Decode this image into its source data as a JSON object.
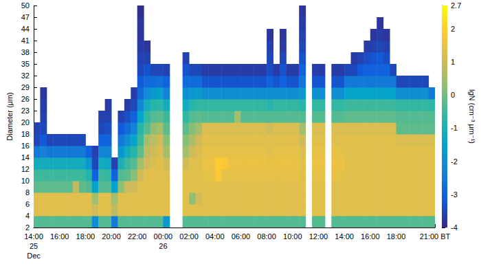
{
  "chart_data": {
    "type": "heatmap",
    "ylabel": "Diameter (μm)",
    "x": [
      "14:00\n25\nDec",
      null,
      null,
      null,
      "16:00",
      null,
      null,
      null,
      "18:00",
      null,
      null,
      null,
      "20:00",
      null,
      null,
      null,
      "22:00",
      null,
      null,
      null,
      "00:00\n26",
      null,
      null,
      null,
      "02:00",
      null,
      null,
      null,
      "04:00",
      null,
      null,
      null,
      "06:00",
      null,
      null,
      null,
      "08:00",
      null,
      null,
      null,
      "10:00",
      null,
      null,
      null,
      "12:00",
      null,
      null,
      null,
      "14:00",
      null,
      null,
      null,
      "16:00",
      null,
      null,
      null,
      "18:00",
      null,
      null,
      null,
      null,
      null,
      "21:00 BT"
    ],
    "y": [
      2,
      4,
      6,
      8,
      10,
      12,
      14,
      16,
      18,
      20,
      23,
      26,
      29,
      32,
      35,
      38,
      41,
      44,
      47,
      50
    ],
    "z": [
      [
        -0.3,
        1.3,
        1.3,
        -0.2,
        -0.5,
        -1.2,
        -2.5,
        -3.5,
        -3.6,
        null,
        null,
        null,
        null,
        null,
        null,
        null,
        null,
        null,
        null
      ],
      [
        -0.3,
        1.3,
        1.3,
        -0.2,
        -0.5,
        -1.2,
        -2.3,
        -3.2,
        -3.5,
        -3.6,
        -3.7,
        -3.8,
        null,
        null,
        null,
        null,
        null,
        null,
        null
      ],
      [
        -0.3,
        1.3,
        1.3,
        -0.2,
        -0.5,
        -1.2,
        -2.5,
        -3.5,
        null,
        null,
        null,
        null,
        null,
        null,
        null,
        null,
        null,
        null,
        null
      ],
      [
        -0.3,
        1.3,
        1.3,
        -0.2,
        -0.5,
        -1.2,
        -2.5,
        -3.5,
        null,
        null,
        null,
        null,
        null,
        null,
        null,
        null,
        null,
        null,
        null
      ],
      [
        -0.3,
        1.3,
        1.3,
        -0.2,
        -0.5,
        -1.2,
        -2.5,
        -3.5,
        null,
        null,
        null,
        null,
        null,
        null,
        null,
        null,
        null,
        null,
        null
      ],
      [
        -0.3,
        1.3,
        1.3,
        -0.2,
        -0.5,
        -1.2,
        -2.5,
        -3.5,
        null,
        null,
        null,
        null,
        null,
        null,
        null,
        null,
        null,
        null,
        null
      ],
      [
        -0.3,
        1.3,
        1.3,
        0.8,
        -0.5,
        -1.2,
        -2.5,
        -3.5,
        null,
        null,
        null,
        null,
        null,
        null,
        null,
        null,
        null,
        null,
        null
      ],
      [
        -0.3,
        1.3,
        1.3,
        -0.2,
        -0.5,
        -1.2,
        -2.5,
        -3.5,
        null,
        null,
        null,
        null,
        null,
        null,
        null,
        null,
        null,
        null,
        null
      ],
      [
        -0.3,
        1.3,
        1.3,
        -0.3,
        -0.8,
        -1.8,
        -3,
        null,
        null,
        null,
        null,
        null,
        null,
        null,
        null,
        null,
        null,
        null,
        null
      ],
      [
        -2,
        1.0,
        0.5,
        -1.5,
        -3,
        -3.5,
        -3.6,
        null,
        null,
        null,
        null,
        null,
        null,
        null,
        null,
        null,
        null,
        null,
        null
      ],
      [
        -0.3,
        1.3,
        1.3,
        -0.3,
        -0.5,
        -1.2,
        -2.2,
        -3,
        -3.5,
        -3.6,
        null,
        null,
        null,
        null,
        null,
        null,
        null,
        null,
        null
      ],
      [
        -0.3,
        1.3,
        1.3,
        -0.3,
        -0.6,
        -1.3,
        -2.3,
        -3,
        -3.4,
        -3.6,
        -3.7,
        null,
        null,
        null,
        null,
        null,
        null,
        null,
        null
      ],
      [
        -2.5,
        0.8,
        0.5,
        -1.5,
        -3,
        -3.6,
        null,
        null,
        null,
        null,
        null,
        null,
        null,
        null,
        null,
        null,
        null,
        null,
        null
      ],
      [
        -0.3,
        1.3,
        1.3,
        0.3,
        -0.3,
        -1,
        -1.8,
        -2.5,
        -3.2,
        -3.6,
        null,
        null,
        null,
        null,
        null,
        null,
        null,
        null,
        null
      ],
      [
        -0.3,
        1.3,
        1.3,
        1,
        -0.2,
        -0.5,
        -1.2,
        -2,
        -2.8,
        -3.4,
        -3.7,
        null,
        null,
        null,
        null,
        null,
        null,
        null,
        null
      ],
      [
        -0.3,
        1.3,
        1.3,
        1,
        0.2,
        -0.3,
        -0.8,
        -1.5,
        -2.3,
        -3,
        -3.5,
        -3.7,
        null,
        null,
        null,
        null,
        null,
        null,
        null
      ],
      [
        -0.3,
        1.3,
        1.3,
        1.3,
        1,
        0.5,
        -0.2,
        -0.5,
        -0.8,
        -1.5,
        -2.2,
        -2.8,
        -3.2,
        -3.5,
        -3.6,
        -3.7,
        -3.8,
        -3.8,
        -3.9
      ],
      [
        -0.3,
        1.3,
        1.3,
        1.3,
        1.3,
        1,
        0.8,
        0.5,
        -0.3,
        -0.6,
        -1.2,
        -2,
        -2.8,
        -3.3,
        -3.6,
        -3.8,
        null,
        null,
        null
      ],
      [
        -0.3,
        1.3,
        1.3,
        1.3,
        1.3,
        1.2,
        1,
        0.8,
        0.3,
        -0.3,
        -0.8,
        -1.8,
        -2.8,
        -3.5,
        null,
        null,
        null,
        null,
        null
      ],
      [
        -0.3,
        1.3,
        1.3,
        1.3,
        1.3,
        1.3,
        1.2,
        1,
        0.5,
        -0.2,
        -0.7,
        -1.6,
        -2.7,
        -3.5,
        null,
        null,
        null,
        null,
        null
      ],
      [
        -1.8,
        1.3,
        1.3,
        1.3,
        1.2,
        1,
        0.5,
        0.2,
        -0.2,
        -0.5,
        -1.2,
        -2.3,
        -3,
        -3.6,
        null,
        null,
        null,
        null,
        null
      ],
      [
        null,
        null,
        null,
        null,
        null,
        null,
        null,
        null,
        null,
        null,
        null,
        null,
        null,
        null,
        null,
        null,
        null,
        null,
        null
      ],
      [
        null,
        null,
        null,
        null,
        null,
        null,
        null,
        null,
        null,
        null,
        null,
        null,
        null,
        null,
        null,
        null,
        null,
        null,
        null
      ],
      [
        -0.3,
        1.3,
        1.3,
        1.3,
        1.3,
        1,
        0.5,
        0.2,
        -0.2,
        -0.6,
        -1.2,
        -2,
        -2.8,
        -3.3,
        -3.6,
        null,
        null,
        null,
        null
      ],
      [
        -0.3,
        1.3,
        0.3,
        1.3,
        1.3,
        1.3,
        1,
        0.6,
        0.2,
        -0.3,
        -0.8,
        -1.8,
        -2.8,
        -3.5,
        null,
        null,
        null,
        null,
        null
      ],
      [
        -0.3,
        1.3,
        1,
        1.3,
        1.3,
        1.3,
        1.2,
        1,
        0.5,
        -0.2,
        -0.6,
        -1.7,
        -2.8,
        -3.5,
        null,
        null,
        null,
        null,
        null
      ],
      [
        -0.3,
        1.3,
        1.3,
        1.3,
        1.4,
        1.5,
        1.4,
        1.3,
        1.2,
        -0.3,
        -0.6,
        -2,
        -3.3,
        -3.7,
        null,
        null,
        null,
        null,
        null
      ],
      [
        -0.3,
        1.3,
        1.3,
        1.3,
        1.4,
        1.5,
        1.4,
        1.3,
        1.2,
        -0.3,
        -0.6,
        -2,
        -3.3,
        -3.7,
        null,
        null,
        null,
        null,
        null
      ],
      [
        -0.3,
        1.3,
        1.3,
        1.3,
        1.8,
        1.9,
        1.4,
        1.3,
        1.2,
        -0.3,
        -0.6,
        -2,
        -3.3,
        -3.7,
        null,
        null,
        null,
        null,
        null
      ],
      [
        -0.3,
        1.3,
        1.3,
        1.3,
        1.4,
        1.8,
        1.4,
        1.3,
        1.2,
        -0.3,
        -0.6,
        -2,
        -3.3,
        -3.7,
        null,
        null,
        null,
        null,
        null
      ],
      [
        -0.3,
        1.3,
        1.3,
        1.3,
        1.4,
        1.5,
        1.4,
        1.3,
        1.2,
        -0.3,
        -0.6,
        -2,
        -3.3,
        -3.7,
        null,
        null,
        null,
        null,
        null
      ],
      [
        -0.3,
        1.3,
        1.3,
        1.3,
        1.4,
        1.5,
        1.4,
        1.3,
        1.2,
        0.5,
        -0.6,
        -2,
        -3.3,
        -3.7,
        null,
        null,
        null,
        null,
        null
      ],
      [
        -0.3,
        1.3,
        1.3,
        1.3,
        1.4,
        1.5,
        1.4,
        1.3,
        1.2,
        -0.3,
        -0.6,
        -2,
        -3.3,
        -3.7,
        null,
        null,
        null,
        null,
        null
      ],
      [
        -0.3,
        1.3,
        1.3,
        1.3,
        1.4,
        1.5,
        1.4,
        1.3,
        1.2,
        -0.3,
        -0.6,
        -2,
        -3.3,
        -3.7,
        null,
        null,
        null,
        null,
        null
      ],
      [
        -0.3,
        1.3,
        1.3,
        1.3,
        1.4,
        1.5,
        1.4,
        1.3,
        1.2,
        -0.3,
        -0.6,
        -2,
        -3.3,
        -3.7,
        null,
        null,
        null,
        null,
        null
      ],
      [
        -0.3,
        1.3,
        1.3,
        1.3,
        1.4,
        1.5,
        1.4,
        1.3,
        1.2,
        -0.3,
        -0.6,
        -2,
        -3.3,
        -3.7,
        null,
        null,
        null,
        null,
        null
      ],
      [
        -0.3,
        1.3,
        1.3,
        1.3,
        1.4,
        1.4,
        1.3,
        1.3,
        1,
        -0.3,
        -0.8,
        -2,
        -3,
        -3.4,
        -3.5,
        -3.6,
        -3.8,
        null,
        null
      ],
      [
        -0.3,
        1.3,
        1.3,
        1.3,
        1.4,
        1.5,
        1.4,
        1.3,
        1.2,
        -0.3,
        -0.6,
        -2,
        -3.3,
        -3.7,
        null,
        null,
        null,
        null,
        null
      ],
      [
        -0.3,
        1.3,
        1.3,
        1.3,
        1.4,
        1.5,
        1.4,
        1.3,
        1.2,
        -0.3,
        -0.6,
        -2,
        -3,
        -3.3,
        -3.5,
        -3.7,
        -3.8,
        null,
        null
      ],
      [
        -0.3,
        1.3,
        1.3,
        1.3,
        1.4,
        1.5,
        1.4,
        1.3,
        1.2,
        -0.3,
        -0.6,
        -2,
        -3.3,
        -3.7,
        null,
        null,
        null,
        null,
        null
      ],
      [
        -0.3,
        1.3,
        1.3,
        1.3,
        1.4,
        1.5,
        1.4,
        1.3,
        1.2,
        -0.3,
        -0.6,
        -2,
        -3.3,
        -3.7,
        null,
        null,
        null,
        null,
        null
      ],
      [
        -0.3,
        1.3,
        1.3,
        1.3,
        1.3,
        1.3,
        1.2,
        1,
        0.5,
        -0.3,
        -0.8,
        -1.8,
        -2.6,
        -3,
        -3.3,
        -3.5,
        -3.6,
        -3.7,
        -3.8
      ],
      [
        null,
        null,
        null,
        null,
        null,
        null,
        null,
        null,
        null,
        null,
        null,
        null,
        null,
        null,
        null,
        null,
        null,
        null,
        null
      ],
      [
        -0.3,
        1.3,
        1.3,
        1.3,
        1.4,
        1.5,
        1.4,
        1.3,
        1.2,
        -0.3,
        -0.6,
        -2,
        -3.3,
        -3.7,
        null,
        null,
        null,
        null,
        null
      ],
      [
        -0.3,
        1.3,
        1.3,
        1.3,
        1.4,
        1.5,
        1.4,
        1.3,
        1.2,
        -0.3,
        -0.6,
        -2,
        -3.3,
        -3.7,
        null,
        null,
        null,
        null,
        null
      ],
      [
        null,
        null,
        null,
        null,
        null,
        null,
        null,
        null,
        null,
        null,
        null,
        null,
        null,
        null,
        null,
        null,
        null,
        null,
        null
      ],
      [
        -0.3,
        1.3,
        1.3,
        1.3,
        1.4,
        1.5,
        1.4,
        1.3,
        1.2,
        -0.3,
        -0.6,
        -2,
        -3.3,
        -3.7,
        null,
        null,
        null,
        null,
        null
      ],
      [
        -0.3,
        1.3,
        1.3,
        1.3,
        1.4,
        1.5,
        1.4,
        1.3,
        1.2,
        -0.3,
        -0.6,
        -2,
        -3.3,
        -3.7,
        null,
        null,
        null,
        null,
        null
      ],
      [
        -0.3,
        1.3,
        1.3,
        1.3,
        1.3,
        1.3,
        1.3,
        1.3,
        1.2,
        -0.2,
        -0.5,
        -1.5,
        -2.5,
        -3.5,
        null,
        null,
        null,
        null,
        null
      ],
      [
        -0.3,
        1.3,
        1.3,
        1.3,
        1.3,
        1.3,
        1.3,
        1.3,
        1.2,
        -0.2,
        -0.5,
        -1.5,
        -2.5,
        -3.5,
        -3.7,
        null,
        null,
        null,
        null
      ],
      [
        -0.3,
        1.3,
        1.3,
        1.3,
        1.3,
        1.3,
        1.3,
        1.3,
        1.2,
        -0.2,
        -0.5,
        -1.5,
        -2.5,
        -3.2,
        -3.6,
        null,
        null,
        null,
        null
      ],
      [
        -0.3,
        1.3,
        1.3,
        1.3,
        1.3,
        1.3,
        1.3,
        1.3,
        1.2,
        -0.2,
        -0.5,
        -1.5,
        -2.5,
        -3,
        -3.4,
        -3.7,
        null,
        null,
        null
      ],
      [
        -0.3,
        1.3,
        1.3,
        1.3,
        1.3,
        1.3,
        1.3,
        1.3,
        1.2,
        -0.2,
        -0.5,
        -1.5,
        -2.5,
        -3,
        -3.3,
        -3.6,
        -3.8,
        null,
        null
      ],
      [
        -0.3,
        1.3,
        1.3,
        1.3,
        1.3,
        1.3,
        1.3,
        1.3,
        1.2,
        -0.2,
        -0.5,
        -1.5,
        -2.5,
        -3,
        -3.2,
        -3.5,
        -3.7,
        -3.8,
        null
      ],
      [
        -0.3,
        1.3,
        1.3,
        1.3,
        1.3,
        1.3,
        1.3,
        1.3,
        1.2,
        -0.2,
        -0.5,
        -1.5,
        -2.5,
        -3,
        -3.4,
        -3.6,
        -3.8,
        null,
        null
      ],
      [
        -0.3,
        1.3,
        1.3,
        1.3,
        1.3,
        1.3,
        1.3,
        1.3,
        1.2,
        -0.2,
        -0.5,
        -1.5,
        -2.5,
        -3.5,
        null,
        null,
        null,
        null,
        null
      ],
      [
        -0.3,
        1.3,
        1.3,
        1.3,
        1.3,
        1.3,
        1.3,
        1.2,
        -0.2,
        -0.3,
        -0.6,
        -2,
        -3.5,
        null,
        null,
        null,
        null,
        null,
        null
      ],
      [
        -0.3,
        1.3,
        1.3,
        1.3,
        1.3,
        1.3,
        1.3,
        1.2,
        -0.2,
        -0.3,
        -0.6,
        -2,
        -3.5,
        null,
        null,
        null,
        null,
        null,
        null
      ],
      [
        -0.3,
        1.3,
        1.3,
        1.3,
        1.3,
        1.3,
        1.3,
        1.2,
        -0.2,
        -0.3,
        -0.6,
        -2,
        -3.5,
        null,
        null,
        null,
        null,
        null,
        null
      ],
      [
        -0.3,
        1.3,
        1.3,
        1.3,
        1.3,
        1.3,
        1.3,
        1.2,
        -0.2,
        -0.3,
        -0.6,
        -2,
        -3.5,
        null,
        null,
        null,
        null,
        null,
        null
      ],
      [
        -0.3,
        1.3,
        1.3,
        1.3,
        1.3,
        1.3,
        1.3,
        1.2,
        -0.2,
        -0.3,
        -0.6,
        -2,
        -3.5,
        null,
        null,
        null,
        null,
        null,
        null
      ],
      [
        -0.3,
        1.3,
        1.3,
        1.3,
        1.3,
        1.3,
        1.3,
        1.2,
        -0.2,
        -0.3,
        -0.7,
        -2.5,
        null,
        null,
        null,
        null,
        null,
        null,
        null
      ]
    ],
    "colorbar": {
      "label": "lgN (cm⁻³ μm⁻¹)",
      "range": [
        -4,
        2.7
      ],
      "ticks": [
        -4,
        -3,
        -2,
        -1,
        0,
        1,
        2
      ]
    }
  }
}
